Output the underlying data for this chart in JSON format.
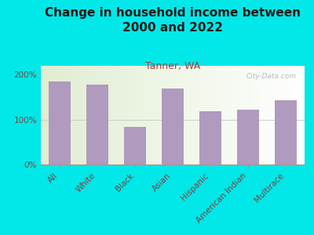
{
  "title": "Change in household income between\n2000 and 2022",
  "subtitle": "Tanner, WA",
  "categories": [
    "All",
    "White",
    "Black",
    "Asian",
    "Hispanic",
    "American Indian",
    "Multirace"
  ],
  "values": [
    185,
    178,
    83,
    170,
    118,
    123,
    143
  ],
  "bar_color": "#b09abe",
  "background_color": "#00e8e8",
  "title_color": "#1a1a1a",
  "subtitle_color": "#994444",
  "tick_label_color": "#7a4040",
  "ylim": [
    0,
    220
  ],
  "yticks": [
    0,
    100,
    200
  ],
  "ytick_labels": [
    "0%",
    "100%",
    "200%"
  ],
  "watermark": "City-Data.com",
  "title_fontsize": 11,
  "subtitle_fontsize": 9,
  "tick_fontsize": 7.5
}
